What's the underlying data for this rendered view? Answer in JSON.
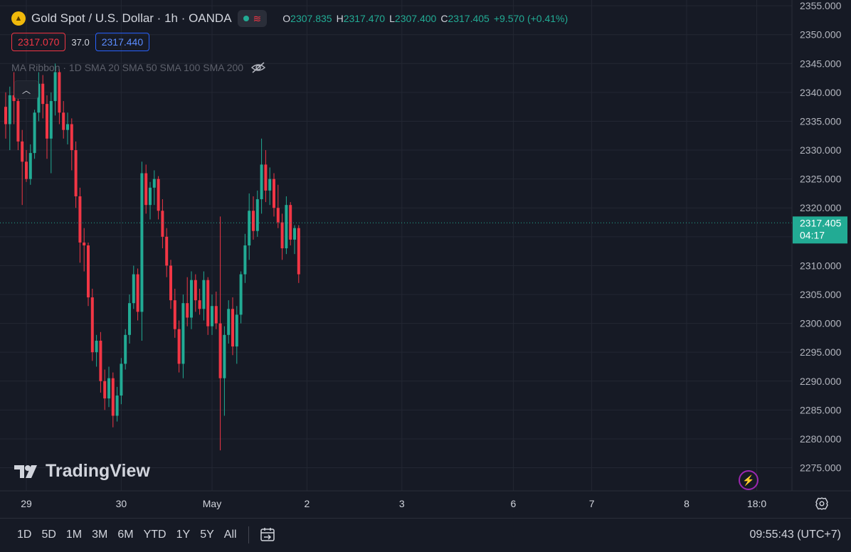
{
  "header": {
    "symbol_title": "Gold Spot / U.S. Dollar · 1h · OANDA",
    "ohlc": {
      "o_label": "O",
      "o": "2307.835",
      "h_label": "H",
      "h": "2317.470",
      "l_label": "L",
      "l": "2307.400",
      "c_label": "C",
      "c": "2317.405",
      "change": "+9.570 (+0.41%)"
    }
  },
  "prices": {
    "sell": "2317.070",
    "spread": "37.0",
    "buy": "2317.440"
  },
  "indicator": {
    "label": "MA Ribbon · 1D SMA 20 SMA 50 SMA 100 SMA 200"
  },
  "price_scale": {
    "labels": [
      "2355.000",
      "2350.000",
      "2345.000",
      "2340.000",
      "2335.000",
      "2330.000",
      "2325.000",
      "2320.000",
      "2315.000",
      "2310.000",
      "2305.000",
      "2300.000",
      "2295.000",
      "2290.000",
      "2285.000",
      "2280.000",
      "2275.000"
    ],
    "current_price": "2317.405",
    "countdown": "04:17"
  },
  "time_axis": {
    "labels": [
      {
        "t": "29",
        "bar": 5
      },
      {
        "t": "30",
        "bar": 28
      },
      {
        "t": "May",
        "bar": 50
      },
      {
        "t": "2",
        "bar": 73
      },
      {
        "t": "3",
        "bar": 96
      },
      {
        "t": "6",
        "bar": 123
      },
      {
        "t": "7",
        "bar": 142
      },
      {
        "t": "8",
        "bar": 165
      },
      {
        "t": "18:0",
        "bar": 182
      }
    ]
  },
  "watermark": "TradingView",
  "toolbar": {
    "ranges": [
      "1D",
      "5D",
      "1M",
      "3M",
      "6M",
      "YTD",
      "1Y",
      "5Y",
      "All"
    ],
    "clock": "09:55:43 (UTC+7)"
  },
  "colors": {
    "up": "#22ab94",
    "down": "#f23645",
    "background": "#161a25",
    "grid": "#232733",
    "accent": "#2962ff"
  },
  "chart_data": {
    "type": "candlestick",
    "ylim": [
      2271,
      2356
    ],
    "candles": [
      [
        2337.5,
        2340.0,
        2332.0,
        2334.5
      ],
      [
        2334.5,
        2341.0,
        2330.0,
        2339.5
      ],
      [
        2339.5,
        2343.5,
        2334.5,
        2338.5
      ],
      [
        2338.5,
        2340.5,
        2330.0,
        2331.5
      ],
      [
        2331.5,
        2333.5,
        2320.5,
        2328.0
      ],
      [
        2328.0,
        2330.0,
        2324.5,
        2325.0
      ],
      [
        2325.0,
        2331.0,
        2324.0,
        2329.5
      ],
      [
        2329.5,
        2337.0,
        2328.5,
        2336.5
      ],
      [
        2336.5,
        2343.5,
        2335.0,
        2341.5
      ],
      [
        2341.5,
        2343.0,
        2335.5,
        2338.0
      ],
      [
        2338.0,
        2339.5,
        2328.5,
        2332.0
      ],
      [
        2332.0,
        2340.0,
        2326.0,
        2338.5
      ],
      [
        2338.5,
        2345.0,
        2336.0,
        2343.5
      ],
      [
        2343.5,
        2344.0,
        2334.5,
        2336.5
      ],
      [
        2336.5,
        2338.5,
        2332.0,
        2333.5
      ],
      [
        2333.5,
        2336.5,
        2331.0,
        2334.5
      ],
      [
        2334.5,
        2335.5,
        2326.5,
        2330.0
      ],
      [
        2330.0,
        2331.5,
        2320.0,
        2322.0
      ],
      [
        2322.0,
        2323.5,
        2310.5,
        2314.0
      ],
      [
        2314.0,
        2316.5,
        2309.0,
        2313.5
      ],
      [
        2313.5,
        2314.0,
        2303.0,
        2304.5
      ],
      [
        2304.5,
        2306.0,
        2293.5,
        2295.0
      ],
      [
        2295.0,
        2298.0,
        2292.5,
        2297.0
      ],
      [
        2297.0,
        2298.5,
        2288.0,
        2290.0
      ],
      [
        2290.0,
        2292.0,
        2285.0,
        2287.0
      ],
      [
        2287.0,
        2292.5,
        2285.5,
        2290.5
      ],
      [
        2290.5,
        2291.5,
        2282.0,
        2284.0
      ],
      [
        2284.0,
        2289.0,
        2283.0,
        2287.5
      ],
      [
        2287.5,
        2294.0,
        2286.0,
        2293.0
      ],
      [
        2293.0,
        2299.0,
        2292.0,
        2298.0
      ],
      [
        2298.0,
        2305.0,
        2296.5,
        2303.5
      ],
      [
        2303.5,
        2310.0,
        2302.5,
        2308.5
      ],
      [
        2308.5,
        2309.5,
        2300.5,
        2302.0
      ],
      [
        2302.0,
        2328.0,
        2297.0,
        2326.0
      ],
      [
        2326.0,
        2327.5,
        2319.0,
        2320.5
      ],
      [
        2320.5,
        2324.5,
        2318.0,
        2323.5
      ],
      [
        2323.5,
        2326.5,
        2320.5,
        2325.0
      ],
      [
        2325.0,
        2325.5,
        2318.0,
        2319.5
      ],
      [
        2319.5,
        2321.5,
        2313.0,
        2315.0
      ],
      [
        2315.0,
        2316.5,
        2308.0,
        2310.0
      ],
      [
        2310.0,
        2311.0,
        2302.5,
        2304.0
      ],
      [
        2304.0,
        2306.0,
        2297.5,
        2299.0
      ],
      [
        2299.0,
        2300.5,
        2291.5,
        2293.0
      ],
      [
        2293.0,
        2305.0,
        2290.5,
        2303.5
      ],
      [
        2303.5,
        2308.0,
        2299.5,
        2301.0
      ],
      [
        2301.0,
        2309.0,
        2299.0,
        2307.5
      ],
      [
        2307.5,
        2308.5,
        2302.0,
        2304.0
      ],
      [
        2304.0,
        2306.0,
        2301.5,
        2302.5
      ],
      [
        2302.5,
        2309.0,
        2300.5,
        2307.5
      ],
      [
        2307.5,
        2308.0,
        2298.0,
        2299.5
      ],
      [
        2299.5,
        2305.0,
        2298.0,
        2303.0
      ],
      [
        2303.0,
        2305.5,
        2299.0,
        2300.0
      ],
      [
        2300.0,
        2318.5,
        2278.0,
        2290.5
      ],
      [
        2290.5,
        2299.5,
        2284.0,
        2298.0
      ],
      [
        2298.0,
        2304.0,
        2296.5,
        2302.5
      ],
      [
        2302.5,
        2304.5,
        2294.5,
        2296.0
      ],
      [
        2296.0,
        2303.0,
        2293.0,
        2301.5
      ],
      [
        2301.5,
        2309.0,
        2300.0,
        2308.5
      ],
      [
        2308.5,
        2315.5,
        2307.0,
        2313.5
      ],
      [
        2313.5,
        2322.5,
        2311.0,
        2319.5
      ],
      [
        2319.5,
        2322.0,
        2314.5,
        2316.0
      ],
      [
        2316.0,
        2323.0,
        2315.0,
        2321.5
      ],
      [
        2321.5,
        2332.0,
        2319.0,
        2327.5
      ],
      [
        2327.5,
        2330.0,
        2321.0,
        2323.0
      ],
      [
        2323.0,
        2327.0,
        2320.5,
        2325.0
      ],
      [
        2325.0,
        2326.0,
        2318.5,
        2320.0
      ],
      [
        2320.0,
        2324.0,
        2316.5,
        2317.5
      ],
      [
        2317.5,
        2319.0,
        2311.0,
        2313.0
      ],
      [
        2313.0,
        2322.0,
        2312.0,
        2320.5
      ],
      [
        2320.5,
        2321.0,
        2313.5,
        2314.5
      ],
      [
        2314.5,
        2317.0,
        2312.0,
        2316.5
      ],
      [
        2316.5,
        2317.0,
        2307.0,
        2308.5
      ]
    ]
  }
}
